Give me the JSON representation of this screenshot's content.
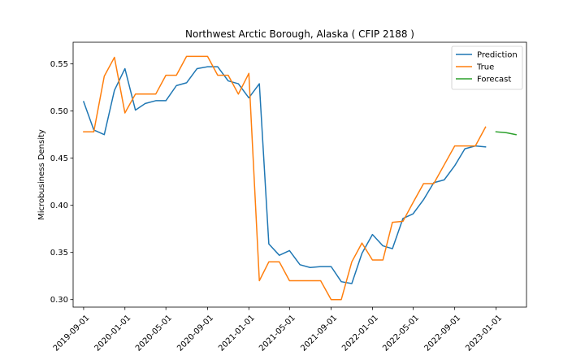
{
  "chart_data": {
    "type": "line",
    "title": "Northwest Arctic Borough, Alaska ( CFIP 2188 )",
    "xlabel": "",
    "ylabel": "Microbusiness Density",
    "ylim": [
      0.292,
      0.573
    ],
    "xlim": [
      "2019-08-01",
      "2023-04-01"
    ],
    "grid": false,
    "legend_position": "top-right",
    "x_ticks": [
      "2019-09-01",
      "2020-01-01",
      "2020-05-01",
      "2020-09-01",
      "2021-01-01",
      "2021-05-01",
      "2021-09-01",
      "2022-01-01",
      "2022-05-01",
      "2022-09-01",
      "2023-01-01"
    ],
    "y_ticks": [
      0.3,
      0.35,
      0.4,
      0.45,
      0.5,
      0.55
    ],
    "y_tick_labels": [
      "0.30",
      "0.35",
      "0.40",
      "0.45",
      "0.50",
      "0.55"
    ],
    "series": [
      {
        "name": "Prediction",
        "color": "#1f77b4",
        "x": [
          "2019-09-01",
          "2019-10-01",
          "2019-11-01",
          "2019-12-01",
          "2020-01-01",
          "2020-02-01",
          "2020-03-01",
          "2020-04-01",
          "2020-05-01",
          "2020-06-01",
          "2020-07-01",
          "2020-08-01",
          "2020-09-01",
          "2020-10-01",
          "2020-11-01",
          "2020-12-01",
          "2021-01-01",
          "2021-02-01",
          "2021-03-01",
          "2021-04-01",
          "2021-05-01",
          "2021-06-01",
          "2021-07-01",
          "2021-08-01",
          "2021-09-01",
          "2021-10-01",
          "2021-11-01",
          "2021-12-01",
          "2022-01-01",
          "2022-02-01",
          "2022-03-01",
          "2022-04-01",
          "2022-05-01",
          "2022-06-01",
          "2022-07-01",
          "2022-08-01",
          "2022-09-01",
          "2022-10-01",
          "2022-11-01",
          "2022-12-01"
        ],
        "values": [
          0.51,
          0.48,
          0.475,
          0.522,
          0.545,
          0.501,
          0.508,
          0.511,
          0.511,
          0.527,
          0.53,
          0.545,
          0.547,
          0.547,
          0.532,
          0.529,
          0.514,
          0.529,
          0.359,
          0.347,
          0.352,
          0.337,
          0.334,
          0.335,
          0.335,
          0.319,
          0.317,
          0.349,
          0.369,
          0.357,
          0.354,
          0.386,
          0.391,
          0.406,
          0.424,
          0.427,
          0.442,
          0.46,
          0.463,
          0.462
        ]
      },
      {
        "name": "True",
        "color": "#ff7f0e",
        "x": [
          "2019-09-01",
          "2019-10-01",
          "2019-11-01",
          "2019-12-01",
          "2020-01-01",
          "2020-02-01",
          "2020-03-01",
          "2020-04-01",
          "2020-05-01",
          "2020-06-01",
          "2020-07-01",
          "2020-08-01",
          "2020-09-01",
          "2020-10-01",
          "2020-11-01",
          "2020-12-01",
          "2021-01-01",
          "2021-02-01",
          "2021-03-01",
          "2021-04-01",
          "2021-05-01",
          "2021-06-01",
          "2021-07-01",
          "2021-08-01",
          "2021-09-01",
          "2021-10-01",
          "2021-11-01",
          "2021-12-01",
          "2022-01-01",
          "2022-02-01",
          "2022-03-01",
          "2022-04-01",
          "2022-05-01",
          "2022-06-01",
          "2022-07-01",
          "2022-08-01",
          "2022-09-01",
          "2022-10-01",
          "2022-11-01",
          "2022-12-01"
        ],
        "values": [
          0.478,
          0.478,
          0.537,
          0.557,
          0.498,
          0.518,
          0.518,
          0.518,
          0.538,
          0.538,
          0.558,
          0.558,
          0.558,
          0.538,
          0.538,
          0.518,
          0.54,
          0.32,
          0.34,
          0.34,
          0.32,
          0.32,
          0.32,
          0.32,
          0.3,
          0.3,
          0.34,
          0.36,
          0.342,
          0.342,
          0.382,
          0.383,
          0.403,
          0.423,
          0.423,
          0.443,
          0.463,
          0.463,
          0.463,
          0.483
        ]
      },
      {
        "name": "Forecast",
        "color": "#2ca02c",
        "x": [
          "2023-01-01",
          "2023-02-01",
          "2023-03-01"
        ],
        "values": [
          0.478,
          0.477,
          0.475
        ]
      }
    ]
  }
}
